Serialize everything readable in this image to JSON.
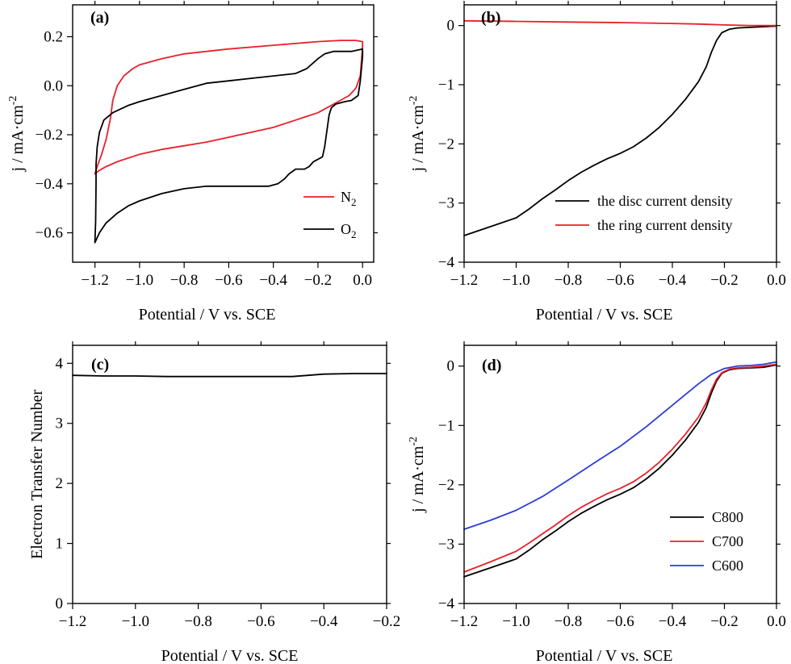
{
  "colors": {
    "black": "#000000",
    "red": "#e8202a",
    "blue": "#2a3ed6"
  },
  "chart_data": [
    {
      "id": "a",
      "type": "line",
      "panel_label": "(a)",
      "xlabel": "Potential / V vs. SCE",
      "ylabel": "j / mA·cm",
      "ylabel_sup": "-2",
      "xlim": [
        -1.3,
        0.05
      ],
      "ylim": [
        -0.72,
        0.33
      ],
      "xticks": [
        -1.2,
        -1.0,
        -0.8,
        -0.6,
        -0.4,
        -0.2,
        0.0
      ],
      "xtick_labels": [
        "-1.2",
        "-1.0",
        "-0.8",
        "-0.6",
        "-0.4",
        "-0.2",
        "0.0"
      ],
      "yticks": [
        -0.6,
        -0.4,
        -0.2,
        0.0,
        0.2
      ],
      "ytick_labels": [
        "-0.6",
        "-0.4",
        "-0.2",
        "0.0",
        "0.2"
      ],
      "legend": "bottom-right",
      "series": [
        {
          "name": "N₂",
          "legend_main": "N",
          "legend_sub": "2",
          "color": "red",
          "points": [
            [
              -1.2,
              -0.36
            ],
            [
              -1.19,
              -0.33
            ],
            [
              -1.17,
              -0.28
            ],
            [
              -1.15,
              -0.22
            ],
            [
              -1.13,
              -0.13
            ],
            [
              -1.12,
              -0.06
            ],
            [
              -1.1,
              0.0
            ],
            [
              -1.07,
              0.04
            ],
            [
              -1.03,
              0.07
            ],
            [
              -1.0,
              0.085
            ],
            [
              -0.9,
              0.11
            ],
            [
              -0.8,
              0.13
            ],
            [
              -0.6,
              0.15
            ],
            [
              -0.4,
              0.165
            ],
            [
              -0.2,
              0.18
            ],
            [
              -0.1,
              0.185
            ],
            [
              -0.03,
              0.185
            ],
            [
              0.0,
              0.18
            ],
            [
              0.0,
              0.16
            ],
            [
              -0.005,
              0.1
            ],
            [
              -0.01,
              0.04
            ],
            [
              -0.03,
              -0.01
            ],
            [
              -0.06,
              -0.04
            ],
            [
              -0.1,
              -0.06
            ],
            [
              -0.2,
              -0.11
            ],
            [
              -0.3,
              -0.14
            ],
            [
              -0.4,
              -0.17
            ],
            [
              -0.5,
              -0.19
            ],
            [
              -0.6,
              -0.21
            ],
            [
              -0.7,
              -0.23
            ],
            [
              -0.8,
              -0.245
            ],
            [
              -0.9,
              -0.26
            ],
            [
              -1.0,
              -0.28
            ],
            [
              -1.1,
              -0.31
            ],
            [
              -1.15,
              -0.33
            ],
            [
              -1.18,
              -0.345
            ],
            [
              -1.2,
              -0.36
            ]
          ]
        },
        {
          "name": "O₂",
          "legend_main": "O",
          "legend_sub": "2",
          "color": "black",
          "points": [
            [
              -1.2,
              -0.64
            ],
            [
              -1.197,
              -0.55
            ],
            [
              -1.195,
              -0.4
            ],
            [
              -1.195,
              -0.32
            ],
            [
              -1.19,
              -0.25
            ],
            [
              -1.18,
              -0.19
            ],
            [
              -1.16,
              -0.14
            ],
            [
              -1.12,
              -0.11
            ],
            [
              -1.05,
              -0.08
            ],
            [
              -1.0,
              -0.065
            ],
            [
              -0.9,
              -0.04
            ],
            [
              -0.8,
              -0.015
            ],
            [
              -0.7,
              0.01
            ],
            [
              -0.6,
              0.02
            ],
            [
              -0.5,
              0.03
            ],
            [
              -0.4,
              0.04
            ],
            [
              -0.3,
              0.05
            ],
            [
              -0.25,
              0.07
            ],
            [
              -0.2,
              0.11
            ],
            [
              -0.17,
              0.13
            ],
            [
              -0.13,
              0.14
            ],
            [
              -0.05,
              0.14
            ],
            [
              0.0,
              0.15
            ],
            [
              0.0,
              0.12
            ],
            [
              -0.01,
              0.02
            ],
            [
              -0.02,
              -0.04
            ],
            [
              -0.05,
              -0.06
            ],
            [
              -0.08,
              -0.065
            ],
            [
              -0.12,
              -0.075
            ],
            [
              -0.14,
              -0.09
            ],
            [
              -0.15,
              -0.12
            ],
            [
              -0.17,
              -0.25
            ],
            [
              -0.18,
              -0.29
            ],
            [
              -0.2,
              -0.3
            ],
            [
              -0.22,
              -0.31
            ],
            [
              -0.24,
              -0.33
            ],
            [
              -0.26,
              -0.34
            ],
            [
              -0.28,
              -0.34
            ],
            [
              -0.3,
              -0.34
            ],
            [
              -0.33,
              -0.36
            ],
            [
              -0.35,
              -0.38
            ],
            [
              -0.38,
              -0.4
            ],
            [
              -0.42,
              -0.41
            ],
            [
              -0.5,
              -0.41
            ],
            [
              -0.6,
              -0.41
            ],
            [
              -0.7,
              -0.41
            ],
            [
              -0.8,
              -0.42
            ],
            [
              -0.9,
              -0.44
            ],
            [
              -1.0,
              -0.47
            ],
            [
              -1.05,
              -0.49
            ],
            [
              -1.1,
              -0.52
            ],
            [
              -1.15,
              -0.56
            ],
            [
              -1.18,
              -0.6
            ],
            [
              -1.2,
              -0.64
            ]
          ]
        }
      ]
    },
    {
      "id": "b",
      "type": "line",
      "panel_label": "(b)",
      "xlabel": "Potential / V vs. SCE",
      "ylabel": "j / mA·cm",
      "ylabel_sup": "-2",
      "xlim": [
        -1.2,
        0.0
      ],
      "ylim": [
        -4.0,
        0.35
      ],
      "xticks": [
        -1.2,
        -1.0,
        -0.8,
        -0.6,
        -0.4,
        -0.2,
        0.0
      ],
      "xtick_labels": [
        "-1.2",
        "-1.0",
        "-0.8",
        "-0.6",
        "-0.4",
        "-0.2",
        "0.0"
      ],
      "yticks": [
        -4,
        -3,
        -2,
        -1,
        0
      ],
      "ytick_labels": [
        "-4",
        "-3",
        "-2",
        "-1",
        "0"
      ],
      "legend": "lower-right",
      "series": [
        {
          "name": "the disc current density",
          "legend_main": "the disc current density",
          "color": "black",
          "points": [
            [
              -1.2,
              -3.55
            ],
            [
              -1.1,
              -3.4
            ],
            [
              -1.0,
              -3.25
            ],
            [
              -0.95,
              -3.1
            ],
            [
              -0.9,
              -2.93
            ],
            [
              -0.85,
              -2.78
            ],
            [
              -0.8,
              -2.62
            ],
            [
              -0.75,
              -2.48
            ],
            [
              -0.7,
              -2.36
            ],
            [
              -0.65,
              -2.25
            ],
            [
              -0.6,
              -2.16
            ],
            [
              -0.55,
              -2.05
            ],
            [
              -0.5,
              -1.9
            ],
            [
              -0.45,
              -1.72
            ],
            [
              -0.4,
              -1.5
            ],
            [
              -0.35,
              -1.25
            ],
            [
              -0.3,
              -0.95
            ],
            [
              -0.27,
              -0.7
            ],
            [
              -0.25,
              -0.45
            ],
            [
              -0.23,
              -0.25
            ],
            [
              -0.21,
              -0.12
            ],
            [
              -0.18,
              -0.06
            ],
            [
              -0.15,
              -0.04
            ],
            [
              -0.1,
              -0.03
            ],
            [
              -0.05,
              -0.02
            ],
            [
              0.0,
              -0.01
            ]
          ]
        },
        {
          "name": "the ring current density",
          "legend_main": "the ring current density",
          "color": "red",
          "points": [
            [
              -1.2,
              0.08
            ],
            [
              -1.0,
              0.07
            ],
            [
              -0.8,
              0.06
            ],
            [
              -0.6,
              0.05
            ],
            [
              -0.4,
              0.035
            ],
            [
              -0.3,
              0.025
            ],
            [
              -0.2,
              0.01
            ],
            [
              -0.1,
              0.0
            ],
            [
              0.0,
              0.0
            ]
          ]
        }
      ]
    },
    {
      "id": "c",
      "type": "line",
      "panel_label": "(c)",
      "xlabel": "Potential / V vs. SCE",
      "ylabel": "Electron Transfer Number",
      "xlim": [
        -1.2,
        -0.2
      ],
      "ylim": [
        0,
        4.3
      ],
      "xticks": [
        -1.2,
        -1.0,
        -0.8,
        -0.6,
        -0.4,
        -0.2
      ],
      "xtick_labels": [
        "-1.2",
        "-1.0",
        "-0.8",
        "-0.6",
        "-0.4",
        "-0.2"
      ],
      "yticks": [
        0,
        1,
        2,
        3,
        4
      ],
      "ytick_labels": [
        "0",
        "1",
        "2",
        "3",
        "4"
      ],
      "series": [
        {
          "color": "black",
          "points": [
            [
              -1.2,
              3.8
            ],
            [
              -1.1,
              3.79
            ],
            [
              -1.0,
              3.79
            ],
            [
              -0.9,
              3.78
            ],
            [
              -0.8,
              3.78
            ],
            [
              -0.7,
              3.78
            ],
            [
              -0.6,
              3.78
            ],
            [
              -0.5,
              3.78
            ],
            [
              -0.45,
              3.8
            ],
            [
              -0.4,
              3.82
            ],
            [
              -0.3,
              3.83
            ],
            [
              -0.2,
              3.83
            ]
          ]
        }
      ]
    },
    {
      "id": "d",
      "type": "line",
      "panel_label": "(d)",
      "xlabel": "Potential / V vs. SCE",
      "ylabel": "j / mA·cm",
      "ylabel_sup": "-2",
      "xlim": [
        -1.2,
        0.0
      ],
      "ylim": [
        -4.0,
        0.35
      ],
      "xticks": [
        -1.2,
        -1.0,
        -0.8,
        -0.6,
        -0.4,
        -0.2,
        0.0
      ],
      "xtick_labels": [
        "-1.2",
        "-1.0",
        "-0.8",
        "-0.6",
        "-0.4",
        "-0.2",
        "0.0"
      ],
      "yticks": [
        -4,
        -3,
        -2,
        -1,
        0
      ],
      "ytick_labels": [
        "-4",
        "-3",
        "-2",
        "-1",
        "0"
      ],
      "legend": "lower-right",
      "series": [
        {
          "name": "C800",
          "legend_main": "C800",
          "color": "black",
          "points": [
            [
              -1.2,
              -3.55
            ],
            [
              -1.1,
              -3.4
            ],
            [
              -1.0,
              -3.25
            ],
            [
              -0.95,
              -3.1
            ],
            [
              -0.9,
              -2.93
            ],
            [
              -0.85,
              -2.78
            ],
            [
              -0.8,
              -2.62
            ],
            [
              -0.75,
              -2.48
            ],
            [
              -0.7,
              -2.36
            ],
            [
              -0.65,
              -2.25
            ],
            [
              -0.6,
              -2.16
            ],
            [
              -0.55,
              -2.05
            ],
            [
              -0.5,
              -1.9
            ],
            [
              -0.45,
              -1.72
            ],
            [
              -0.4,
              -1.5
            ],
            [
              -0.35,
              -1.25
            ],
            [
              -0.3,
              -0.95
            ],
            [
              -0.27,
              -0.7
            ],
            [
              -0.25,
              -0.45
            ],
            [
              -0.23,
              -0.25
            ],
            [
              -0.21,
              -0.12
            ],
            [
              -0.18,
              -0.06
            ],
            [
              -0.15,
              -0.04
            ],
            [
              -0.1,
              -0.03
            ],
            [
              -0.05,
              -0.02
            ],
            [
              0.0,
              0.02
            ]
          ]
        },
        {
          "name": "C700",
          "legend_main": "C700",
          "color": "red",
          "points": [
            [
              -1.2,
              -3.47
            ],
            [
              -1.1,
              -3.3
            ],
            [
              -1.0,
              -3.12
            ],
            [
              -0.95,
              -2.98
            ],
            [
              -0.9,
              -2.83
            ],
            [
              -0.85,
              -2.68
            ],
            [
              -0.8,
              -2.52
            ],
            [
              -0.75,
              -2.38
            ],
            [
              -0.7,
              -2.26
            ],
            [
              -0.65,
              -2.15
            ],
            [
              -0.6,
              -2.06
            ],
            [
              -0.55,
              -1.95
            ],
            [
              -0.5,
              -1.8
            ],
            [
              -0.45,
              -1.62
            ],
            [
              -0.4,
              -1.4
            ],
            [
              -0.35,
              -1.15
            ],
            [
              -0.3,
              -0.86
            ],
            [
              -0.27,
              -0.62
            ],
            [
              -0.25,
              -0.4
            ],
            [
              -0.23,
              -0.22
            ],
            [
              -0.21,
              -0.11
            ],
            [
              -0.18,
              -0.05
            ],
            [
              -0.15,
              -0.03
            ],
            [
              -0.1,
              -0.02
            ],
            [
              -0.05,
              0.0
            ],
            [
              0.0,
              0.03
            ]
          ]
        },
        {
          "name": "C600",
          "legend_main": "C600",
          "color": "blue",
          "points": [
            [
              -1.2,
              -2.75
            ],
            [
              -1.1,
              -2.6
            ],
            [
              -1.0,
              -2.43
            ],
            [
              -0.9,
              -2.2
            ],
            [
              -0.8,
              -1.92
            ],
            [
              -0.7,
              -1.63
            ],
            [
              -0.6,
              -1.35
            ],
            [
              -0.5,
              -1.02
            ],
            [
              -0.4,
              -0.66
            ],
            [
              -0.35,
              -0.48
            ],
            [
              -0.3,
              -0.3
            ],
            [
              -0.25,
              -0.14
            ],
            [
              -0.2,
              -0.04
            ],
            [
              -0.15,
              0.0
            ],
            [
              -0.1,
              0.01
            ],
            [
              -0.05,
              0.03
            ],
            [
              0.0,
              0.07
            ]
          ]
        }
      ]
    }
  ]
}
